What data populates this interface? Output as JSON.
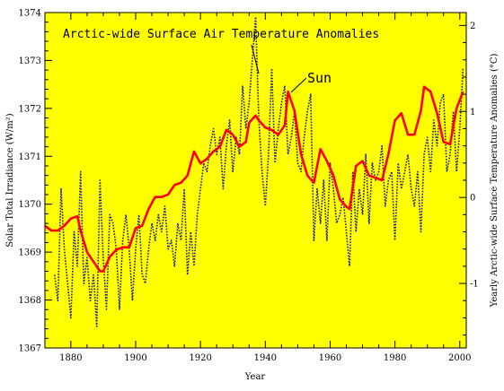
{
  "chart_data": {
    "type": "line",
    "title": "",
    "xlabel": "Year",
    "ylabel_left": "Solar Total Irradiance (W/m²)",
    "ylabel_right": "Yearly Arctic-wide Surface Temperature Anomalies (°C)",
    "background_color": "#ffff00",
    "xlim": [
      1872,
      2002
    ],
    "ylim_left": [
      1367,
      1374
    ],
    "ylim_right": [
      -1.75,
      2.15
    ],
    "x_ticks": [
      1880,
      1900,
      1920,
      1940,
      1960,
      1980,
      2000
    ],
    "y_ticks_left": [
      1367,
      1368,
      1369,
      1370,
      1371,
      1372,
      1373,
      1374
    ],
    "y_ticks_right": [
      -1,
      0,
      1,
      2
    ],
    "annotations": [
      {
        "text": "Arctic-wide Surface Air Temperature Anomalies",
        "points_to_x": 1937
      },
      {
        "text": "Sun",
        "points_to_x": 1947
      }
    ],
    "series": [
      {
        "name": "Sun",
        "axis": "left",
        "color": "#ff0000",
        "style": "solid",
        "x": [
          1872,
          1874,
          1876,
          1878,
          1880,
          1882,
          1883,
          1885,
          1887,
          1889,
          1890,
          1892,
          1894,
          1896,
          1898,
          1900,
          1902,
          1904,
          1906,
          1908,
          1910,
          1912,
          1914,
          1916,
          1918,
          1920,
          1922,
          1924,
          1926,
          1928,
          1930,
          1932,
          1934,
          1935,
          1937,
          1938,
          1940,
          1942,
          1944,
          1946,
          1947,
          1949,
          1951,
          1953,
          1955,
          1957,
          1959,
          1961,
          1963,
          1965,
          1966,
          1968,
          1970,
          1972,
          1974,
          1976,
          1978,
          1980,
          1982,
          1984,
          1986,
          1988,
          1989,
          1991,
          1993,
          1995,
          1997,
          1999,
          2001
        ],
        "y": [
          1369.55,
          1369.45,
          1369.45,
          1369.55,
          1369.7,
          1369.75,
          1369.45,
          1369.0,
          1368.8,
          1368.6,
          1368.6,
          1368.9,
          1369.05,
          1369.1,
          1369.1,
          1369.5,
          1369.55,
          1369.9,
          1370.15,
          1370.15,
          1370.2,
          1370.4,
          1370.45,
          1370.6,
          1371.1,
          1370.85,
          1370.95,
          1371.1,
          1371.2,
          1371.55,
          1371.45,
          1371.2,
          1371.3,
          1371.7,
          1371.85,
          1371.75,
          1371.6,
          1371.55,
          1371.45,
          1371.65,
          1372.35,
          1371.95,
          1371.05,
          1370.6,
          1370.45,
          1371.15,
          1370.9,
          1370.6,
          1370.1,
          1369.95,
          1369.9,
          1370.8,
          1370.9,
          1370.6,
          1370.55,
          1370.5,
          1371.05,
          1371.75,
          1371.9,
          1371.45,
          1371.45,
          1371.95,
          1372.45,
          1372.35,
          1371.9,
          1371.3,
          1371.25,
          1372.0,
          1372.35
        ]
      },
      {
        "name": "Arctic-wide Surface Air Temperature Anomalies",
        "axis": "right",
        "color": "#1e1e96",
        "style": "dotted",
        "x": [
          1875,
          1876,
          1877,
          1878,
          1879,
          1880,
          1881,
          1882,
          1883,
          1884,
          1885,
          1886,
          1887,
          1888,
          1889,
          1890,
          1891,
          1892,
          1893,
          1894,
          1895,
          1896,
          1897,
          1898,
          1899,
          1900,
          1901,
          1902,
          1903,
          1904,
          1905,
          1906,
          1907,
          1908,
          1909,
          1910,
          1911,
          1912,
          1913,
          1914,
          1915,
          1916,
          1917,
          1918,
          1919,
          1920,
          1921,
          1922,
          1923,
          1924,
          1925,
          1926,
          1927,
          1928,
          1929,
          1930,
          1931,
          1932,
          1933,
          1934,
          1935,
          1936,
          1937,
          1938,
          1939,
          1940,
          1941,
          1942,
          1943,
          1944,
          1945,
          1946,
          1947,
          1948,
          1949,
          1950,
          1951,
          1952,
          1953,
          1954,
          1955,
          1956,
          1957,
          1958,
          1959,
          1960,
          1961,
          1962,
          1963,
          1964,
          1965,
          1966,
          1967,
          1968,
          1969,
          1970,
          1971,
          1972,
          1973,
          1974,
          1975,
          1976,
          1977,
          1978,
          1979,
          1980,
          1981,
          1982,
          1983,
          1984,
          1985,
          1986,
          1987,
          1988,
          1989,
          1990,
          1991,
          1992,
          1993,
          1994,
          1995,
          1996,
          1997,
          1998,
          1999,
          2000,
          2001
        ],
        "y": [
          -0.9,
          -1.2,
          0.1,
          -0.6,
          -1.0,
          -1.4,
          -0.4,
          -0.8,
          0.3,
          -1.0,
          -0.7,
          -1.2,
          -0.9,
          -1.5,
          0.2,
          -0.7,
          -1.3,
          -0.2,
          -0.3,
          -0.6,
          -1.3,
          -0.5,
          -0.2,
          -0.6,
          -1.2,
          -0.6,
          -0.2,
          -0.9,
          -1.0,
          -0.6,
          -0.3,
          -0.5,
          -0.2,
          -0.4,
          -0.1,
          -0.6,
          -0.5,
          -0.8,
          -0.3,
          -0.5,
          0.1,
          -0.9,
          -0.4,
          -0.8,
          -0.2,
          0.1,
          0.4,
          0.3,
          0.6,
          0.8,
          0.5,
          0.7,
          0.1,
          0.6,
          0.9,
          0.3,
          0.7,
          0.5,
          1.3,
          0.8,
          1.1,
          1.6,
          2.1,
          0.9,
          0.3,
          -0.1,
          0.5,
          1.5,
          0.4,
          0.8,
          1.1,
          1.3,
          0.5,
          0.7,
          1.0,
          0.4,
          0.3,
          0.7,
          1.0,
          1.2,
          -0.5,
          0.1,
          -0.3,
          0.2,
          -0.5,
          0.4,
          0.1,
          -0.3,
          -0.2,
          0.0,
          -0.4,
          -0.8,
          0.3,
          -0.4,
          0.1,
          -0.2,
          0.5,
          -0.3,
          0.4,
          0.2,
          0.3,
          0.6,
          -0.1,
          0.2,
          0.3,
          -0.5,
          0.4,
          0.1,
          0.3,
          0.5,
          0.1,
          -0.1,
          0.3,
          -0.4,
          0.5,
          0.7,
          0.3,
          0.9,
          0.6,
          1.1,
          1.2,
          0.3,
          0.5,
          1.0,
          0.3,
          0.8,
          1.5
        ]
      }
    ]
  }
}
